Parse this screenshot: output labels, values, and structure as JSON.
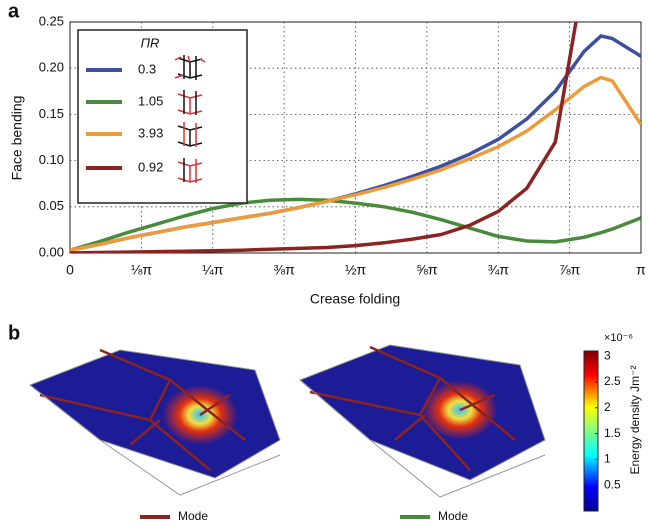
{
  "chart_data": {
    "type": "line",
    "panel_label": "a",
    "xlabel": "Crease folding",
    "ylabel": "Face bending",
    "legend_title": "ΠR",
    "x": [
      0,
      0.05,
      0.1,
      0.15,
      0.2,
      0.25,
      0.3,
      0.35,
      0.4,
      0.45,
      0.5,
      0.55,
      0.6,
      0.65,
      0.7,
      0.75,
      0.8,
      0.85,
      0.9,
      0.93,
      0.95,
      1
    ],
    "series": [
      {
        "name": "0.3",
        "color": "#3d4fa0",
        "values": [
          0.003,
          0.009,
          0.016,
          0.022,
          0.028,
          0.033,
          0.038,
          0.043,
          0.049,
          0.056,
          0.064,
          0.073,
          0.083,
          0.094,
          0.107,
          0.123,
          0.145,
          0.175,
          0.218,
          0.235,
          0.232,
          0.213
        ]
      },
      {
        "name": "1.05",
        "color": "#4a8a3c",
        "values": [
          0.003,
          0.012,
          0.022,
          0.031,
          0.04,
          0.048,
          0.054,
          0.057,
          0.058,
          0.057,
          0.054,
          0.05,
          0.044,
          0.036,
          0.027,
          0.018,
          0.013,
          0.012,
          0.017,
          0.022,
          0.026,
          0.038
        ]
      },
      {
        "name": "3.93",
        "color": "#ec9a3a",
        "values": [
          0.003,
          0.009,
          0.016,
          0.022,
          0.028,
          0.033,
          0.038,
          0.043,
          0.049,
          0.056,
          0.063,
          0.071,
          0.08,
          0.09,
          0.102,
          0.115,
          0.132,
          0.155,
          0.18,
          0.19,
          0.186,
          0.139
        ]
      },
      {
        "name": "0.92",
        "color": "#8b2323",
        "values": [
          0,
          0.0005,
          0.001,
          0.0015,
          0.002,
          0.0025,
          0.003,
          0.004,
          0.005,
          0.006,
          0.008,
          0.011,
          0.015,
          0.02,
          0.03,
          0.045,
          0.07,
          0.12,
          0.3,
          null,
          null,
          null
        ]
      }
    ],
    "xlim": [
      0,
      1
    ],
    "ylim": [
      0,
      0.25
    ],
    "xticks": [
      0,
      {
        "value": 0.125,
        "label": "⅛π"
      },
      {
        "value": 0.25,
        "label": "¼π"
      },
      {
        "value": 0.375,
        "label": "⅜π"
      },
      {
        "value": 0.5,
        "label": "½π"
      },
      {
        "value": 0.625,
        "label": "⅝π"
      },
      {
        "value": 0.75,
        "label": "¾π"
      },
      {
        "value": 0.875,
        "label": "⅞π"
      },
      {
        "value": 1,
        "label": "π"
      }
    ],
    "yticks": [
      {
        "value": 0,
        "label": "0.00"
      },
      {
        "value": 0.05,
        "label": "0.05"
      },
      {
        "value": 0.1,
        "label": "0.10"
      },
      {
        "value": 0.15,
        "label": "0.15"
      },
      {
        "value": 0.2,
        "label": "0.20"
      },
      {
        "value": 0.25,
        "label": "0.25"
      }
    ],
    "grid": true,
    "legend": "upper left"
  },
  "panel_b": {
    "panel_label": "b",
    "colorbar": {
      "lim": [
        0,
        3.1
      ],
      "ticks": [
        0.5,
        1,
        1.5,
        2,
        2.5,
        3
      ],
      "multiplier": "×10⁻⁶",
      "label": "Energy density Jm⁻²"
    },
    "legend": [
      {
        "name": "Mode",
        "color": "#8b2323"
      },
      {
        "name": "Mode",
        "color": "#4a8a3c"
      }
    ]
  }
}
